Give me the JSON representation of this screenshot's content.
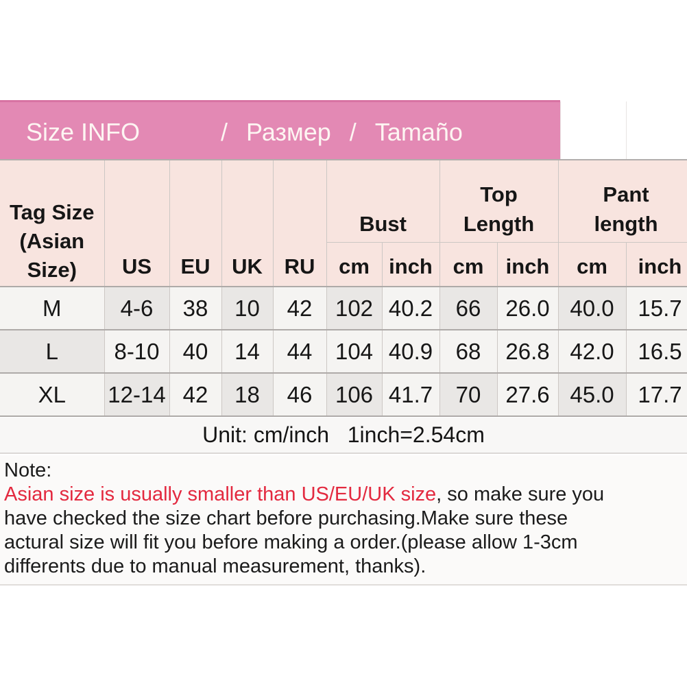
{
  "title_bar": {
    "segments": [
      "Size INFO",
      "/",
      "Размер",
      "/",
      "Tamaño"
    ],
    "bg_color": "#e389b4",
    "border_top_color": "#d873a3",
    "text_color": "#fdf5f2"
  },
  "size_table": {
    "corner_header_lines": [
      "Tag Size",
      "(Asian",
      "Size)"
    ],
    "region_headers": [
      "US",
      "EU",
      "UK",
      "RU"
    ],
    "group_headers": [
      {
        "id": "bust",
        "lines": [
          "Bust"
        ]
      },
      {
        "id": "top-length",
        "lines": [
          "Top",
          "Length"
        ]
      },
      {
        "id": "pant-length",
        "lines": [
          "Pant",
          "length"
        ]
      }
    ],
    "unit_headers": [
      "cm",
      "inch"
    ],
    "column_keys": [
      "tag-size",
      "us",
      "eu",
      "uk",
      "ru",
      "bust-cm",
      "bust-inch",
      "top-cm",
      "top-inch",
      "pant-cm",
      "pant-inch"
    ],
    "rows": [
      {
        "cells": [
          "M",
          "4-6",
          "38",
          "10",
          "42",
          "102",
          "40.2",
          "66",
          "26.0",
          "40.0",
          "15.7"
        ]
      },
      {
        "cells": [
          "L",
          "8-10",
          "40",
          "14",
          "44",
          "104",
          "40.9",
          "68",
          "26.8",
          "42.0",
          "16.5"
        ]
      },
      {
        "cells": [
          "XL",
          "12-14",
          "42",
          "18",
          "46",
          "106",
          "41.7",
          "70",
          "27.6",
          "45.0",
          "17.7"
        ]
      }
    ],
    "header_bg": "#f8e4df",
    "cell_bg_light": "#f5f4f2",
    "cell_bg_shaded": "#e9e7e5"
  },
  "unit_line": {
    "text": "Unit: cm/inch   1inch=2.54cm"
  },
  "note": {
    "text_color": "#1b1b1b",
    "red_color": "#e3293f",
    "lines": [
      {
        "segments": [
          {
            "text": "Note:",
            "color": "default"
          }
        ]
      },
      {
        "segments": [
          {
            "text": "Asian size is usually smaller than US/EU/UK size",
            "color": "red"
          },
          {
            "text": ", so make sure you",
            "color": "default"
          }
        ]
      },
      {
        "segments": [
          {
            "text": "have checked the size chart before purchasing.Make sure these",
            "color": "default"
          }
        ]
      },
      {
        "segments": [
          {
            "text": "actural size will fit you before making a order.(please allow 1-3cm",
            "color": "default"
          }
        ]
      },
      {
        "segments": [
          {
            "text": "differents due to manual measurement, thanks).",
            "color": "default"
          }
        ]
      }
    ]
  }
}
